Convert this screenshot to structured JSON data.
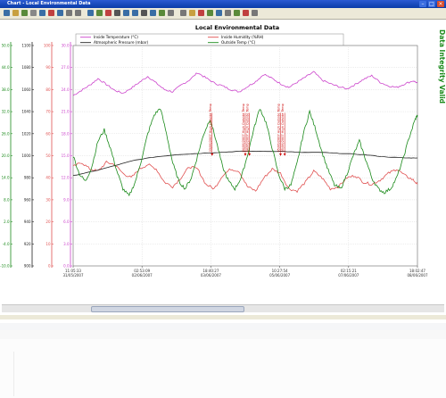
{
  "window": {
    "title": "Chart - Local Environmental Data",
    "controls": [
      "minimize",
      "maximize",
      "close"
    ]
  },
  "toolbar": {
    "icons": [
      "new-icon",
      "open-icon",
      "save-icon",
      "print-icon",
      "copy-icon",
      "cut-icon",
      "paste-icon",
      "undo-icon",
      "redo-icon",
      "chart-type-icon",
      "bar-icon",
      "line-icon",
      "pointer-icon",
      "zoom-in-icon",
      "zoom-out-icon",
      "pan-icon",
      "zoom-box-icon",
      "refresh-icon",
      "axis-icon",
      "grid-icon",
      "legend-icon",
      "marker-icon",
      "color-icon",
      "font-icon",
      "export-icon",
      "add-icon",
      "remove-icon",
      "properties-icon"
    ]
  },
  "side_label": "Data Integrity Valid",
  "colors": {
    "inside_temp": "#cc44cc",
    "humidity": "#e05050",
    "pressure": "#202020",
    "outside_temp": "#1a8a1a",
    "status": "#1a8a1a",
    "event": "#cc0000"
  },
  "chart_data": {
    "type": "line",
    "title": "Local Environmental Data",
    "legend_position": "top",
    "grid": true,
    "x_ticks": [
      {
        "time": "11:05:33",
        "date": "31/05/2007"
      },
      {
        "time": "02:53:09",
        "date": "02/06/2007"
      },
      {
        "time": "18:40:27",
        "date": "03/06/2007"
      },
      {
        "time": "10:27:54",
        "date": "05/06/2007"
      },
      {
        "time": "02:15:21",
        "date": "07/06/2007"
      },
      {
        "time": "18:02:47",
        "date": "08/06/2007"
      }
    ],
    "x_range": [
      "31/05/2007 11:05:33",
      "08/06/2007 18:02:47"
    ],
    "y_axes": [
      {
        "name": "outside_temp_axis",
        "color": "#1a8a1a",
        "range": [
          -10,
          50
        ],
        "ticks": [
          "50.0",
          "44.0",
          "38.0",
          "32.0",
          "26.0",
          "20.0",
          "14.0",
          "8.0",
          "2.0",
          "-4.0",
          "-10.0"
        ]
      },
      {
        "name": "pressure_axis",
        "color": "#202020",
        "range": [
          900,
          1100
        ],
        "ticks": [
          "1100",
          "1080",
          "1060",
          "1040",
          "1020",
          "1000",
          "980",
          "960",
          "940",
          "920",
          "900"
        ]
      },
      {
        "name": "humidity_axis",
        "color": "#e05050",
        "range": [
          0,
          100
        ],
        "ticks": [
          "100",
          "90",
          "80",
          "70",
          "60",
          "50",
          "40",
          "30",
          "20",
          "10",
          "0"
        ]
      },
      {
        "name": "inside_temp_axis",
        "color": "#cc44cc",
        "range": [
          0,
          30
        ],
        "ticks": [
          "30.0",
          "27.0",
          "24.0",
          "21.0",
          "18.0",
          "15.0",
          "12.0",
          "9.0",
          "6.0",
          "3.0",
          "0.0"
        ]
      }
    ],
    "series": [
      {
        "name": "Inside Temperature (°C)",
        "axis": "inside_temp_axis",
        "color": "#cc44cc",
        "x": [
          0,
          0.2,
          0.4,
          0.6,
          0.8,
          1.0,
          1.2,
          1.4,
          1.6,
          1.8,
          2.0,
          2.2,
          2.4,
          2.6,
          2.8,
          3.0,
          3.2,
          3.4,
          3.6,
          3.8,
          4.0,
          4.2,
          4.4,
          4.6,
          4.8,
          5.0,
          5.2,
          5.4,
          5.6,
          5.8,
          6.0,
          6.2,
          6.4,
          6.6,
          6.8,
          7.0,
          7.2,
          7.4,
          7.6,
          7.8,
          8.0,
          8.2,
          8.3
        ],
        "y": [
          23.2,
          23.9,
          24.6,
          25.5,
          24.7,
          23.9,
          23.5,
          24.2,
          25.0,
          25.8,
          24.9,
          24.0,
          23.7,
          24.6,
          25.3,
          26.3,
          25.6,
          24.9,
          24.5,
          24.0,
          23.7,
          24.4,
          25.1,
          26.1,
          25.5,
          24.8,
          24.3,
          25.0,
          25.7,
          26.4,
          25.3,
          24.8,
          24.4,
          24.1,
          24.7,
          25.4,
          25.9,
          25.0,
          24.5,
          24.3,
          24.8,
          25.2,
          24.9
        ]
      },
      {
        "name": "Inside Humidity (%RH)",
        "axis": "humidity_axis",
        "color": "#e05050",
        "x": [
          0,
          0.2,
          0.4,
          0.6,
          0.8,
          1.0,
          1.2,
          1.4,
          1.6,
          1.8,
          2.0,
          2.2,
          2.4,
          2.6,
          2.8,
          3.0,
          3.2,
          3.4,
          3.6,
          3.8,
          4.0,
          4.2,
          4.4,
          4.6,
          4.8,
          5.0,
          5.2,
          5.4,
          5.6,
          5.8,
          6.0,
          6.2,
          6.4,
          6.6,
          6.8,
          7.0,
          7.2,
          7.4,
          7.6,
          7.8,
          8.0,
          8.2,
          8.3
        ],
        "y": [
          45,
          47,
          44,
          43,
          47,
          46,
          42,
          40,
          44,
          46,
          44,
          38,
          36,
          40,
          45,
          44,
          37,
          35,
          41,
          44,
          43,
          36,
          34,
          40,
          44,
          42,
          35,
          34,
          38,
          43,
          40,
          35,
          36,
          40,
          41,
          38,
          37,
          39,
          42,
          44,
          41,
          39,
          37
        ]
      },
      {
        "name": "Atmospheric Pressure (mbar)",
        "axis": "pressure_axis",
        "color": "#202020",
        "x": [
          0,
          0.5,
          1.0,
          1.5,
          2.0,
          2.5,
          3.0,
          3.5,
          4.0,
          4.5,
          5.0,
          5.5,
          6.0,
          6.5,
          7.0,
          7.5,
          8.0,
          8.3
        ],
        "y": [
          982,
          986,
          991,
          996,
          999,
          1001,
          1002,
          1003,
          1004,
          1004,
          1004,
          1003,
          1003,
          1002,
          1001,
          999,
          998,
          998
        ]
      },
      {
        "name": "Outside Temp (°C)",
        "axis": "outside_temp_axis",
        "color": "#1a8a1a",
        "x": [
          0,
          0.15,
          0.3,
          0.45,
          0.6,
          0.75,
          0.9,
          1.05,
          1.2,
          1.35,
          1.5,
          1.65,
          1.8,
          1.95,
          2.1,
          2.25,
          2.4,
          2.55,
          2.7,
          2.85,
          3.0,
          3.15,
          3.3,
          3.45,
          3.6,
          3.75,
          3.9,
          4.05,
          4.2,
          4.35,
          4.5,
          4.65,
          4.8,
          4.95,
          5.1,
          5.25,
          5.4,
          5.55,
          5.7,
          5.85,
          6.0,
          6.15,
          6.3,
          6.45,
          6.6,
          6.75,
          6.9,
          7.05,
          7.2,
          7.35,
          7.5,
          7.65,
          7.8,
          7.95,
          8.1,
          8.25,
          8.3
        ],
        "y": [
          20,
          15,
          13,
          17,
          24,
          27,
          22,
          16,
          11,
          9,
          13,
          19,
          26,
          31,
          33,
          26,
          18,
          13,
          11,
          14,
          20,
          26,
          30,
          24,
          17,
          13,
          11,
          14,
          20,
          27,
          33,
          29,
          22,
          15,
          11,
          12,
          18,
          26,
          32,
          27,
          21,
          16,
          12,
          11,
          15,
          20,
          24,
          19,
          14,
          11,
          10,
          11,
          14,
          19,
          25,
          30,
          31
        ]
      }
    ],
    "annotations": [
      {
        "text": "03/06/2007 High Outside Temp",
        "x": 3.35,
        "value": 20.0
      },
      {
        "text": "04/06/2007 High Outside Temp",
        "x": 4.15,
        "value": 20.0
      },
      {
        "text": "04/06/2007 High Outside Temp",
        "x": 4.25,
        "value": 20.0
      },
      {
        "text": "05/06/2007 High Outside Temp",
        "x": 5.0,
        "value": 20.0
      },
      {
        "text": "05/06/2007 High Outside Temp",
        "x": 5.1,
        "value": 20.0
      }
    ]
  }
}
